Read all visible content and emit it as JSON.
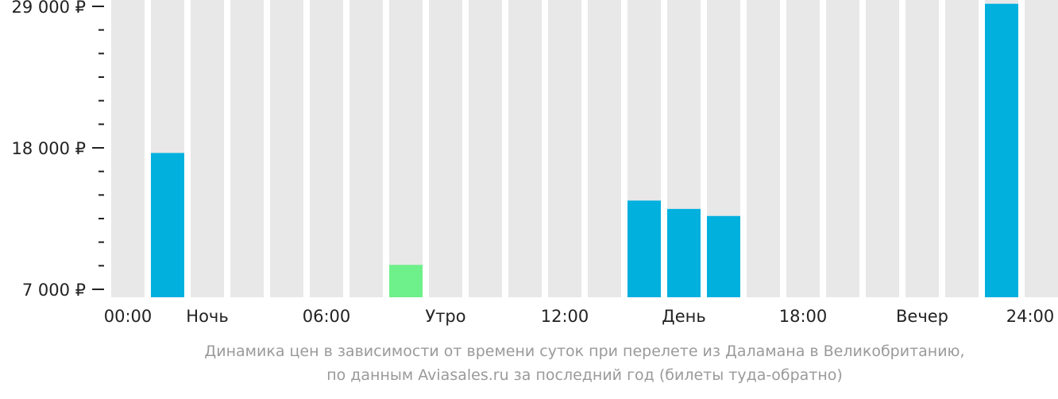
{
  "chart_data": {
    "type": "bar",
    "y_ticks": [
      "29 000 ₽",
      "18 000 ₽",
      "7 000 ₽"
    ],
    "y_tick_values": [
      29000,
      18000,
      7000
    ],
    "ylim": [
      7000,
      29000
    ],
    "x_tick_labels": [
      "00:00",
      "Ночь",
      "06:00",
      "Утро",
      "12:00",
      "День",
      "18:00",
      "Вечер",
      "24:00"
    ],
    "hours": [
      0,
      1,
      2,
      3,
      4,
      5,
      6,
      7,
      8,
      9,
      10,
      11,
      12,
      13,
      14,
      15,
      16,
      17,
      18,
      19,
      20,
      21,
      22,
      23
    ],
    "values": [
      null,
      17600,
      null,
      null,
      null,
      null,
      null,
      8900,
      null,
      null,
      null,
      null,
      null,
      13900,
      13250,
      12700,
      null,
      null,
      null,
      null,
      null,
      null,
      29200,
      null
    ],
    "highlight_index": 7,
    "colors": {
      "bar": "#02b0de",
      "highlight": "#6ef08a",
      "background_bar": "#e8e8e8",
      "axis": "#222222"
    },
    "grid": false,
    "legend": "none"
  },
  "caption": {
    "line1": "Динамика цен в зависимости от времени суток при перелете из Даламана в Великобританию,",
    "line2": "по данным Aviasales.ru за последний год (билеты туда-обратно)"
  }
}
